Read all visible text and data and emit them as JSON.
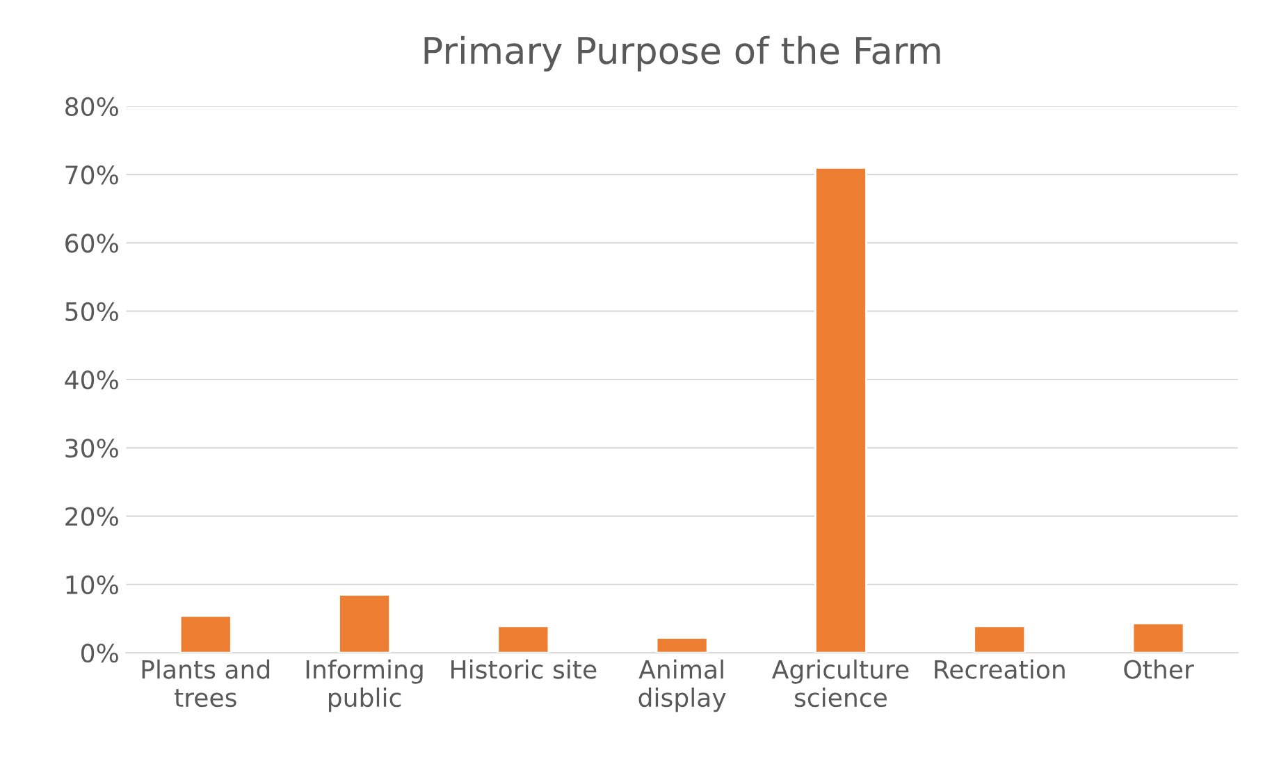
{
  "chart_data": {
    "type": "bar",
    "title": "Primary Purpose of the Farm",
    "categories": [
      "Plants and\ntrees",
      "Informing\npublic",
      "Historic site",
      "Animal\ndisplay",
      "Agriculture\nscience",
      "Recreation",
      "Other"
    ],
    "values": [
      5.4,
      8.5,
      3.9,
      2.2,
      71.0,
      3.9,
      4.3
    ],
    "color": "#ed7d31",
    "ylim": [
      0,
      80
    ],
    "yticks": [
      {
        "value": 0,
        "label": "0%"
      },
      {
        "value": 10,
        "label": "10%"
      },
      {
        "value": 20,
        "label": "20%"
      },
      {
        "value": 30,
        "label": "30%"
      },
      {
        "value": 40,
        "label": "40%"
      },
      {
        "value": 50,
        "label": "50%"
      },
      {
        "value": 60,
        "label": "60%"
      },
      {
        "value": 70,
        "label": "70%"
      },
      {
        "value": 80,
        "label": "80%"
      }
    ],
    "grid": "y"
  }
}
